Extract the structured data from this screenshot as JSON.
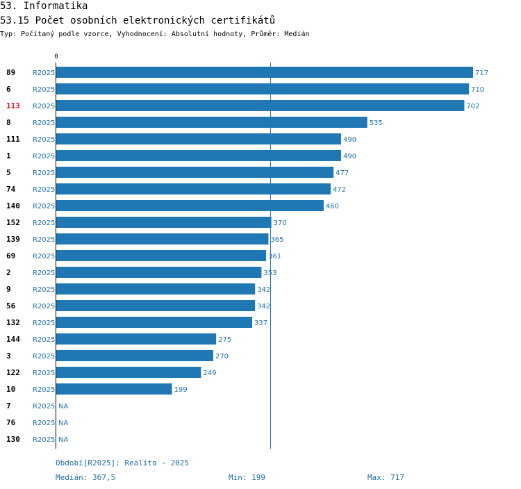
{
  "header": {
    "section_title": "53. Informatika",
    "chart_title": "53.15 Počet osobních elektronických certifikátů",
    "subtitle": "Typ: Počítaný podle vzorce, Vyhodnocení: Absolutní hodnoty, Průměr: Medián"
  },
  "colors": {
    "bar": "#1f77b4",
    "value_text": "#1f6fa8",
    "highlight_label": "#e8151b",
    "label": "#000000"
  },
  "chart_data": {
    "type": "bar",
    "orientation": "horizontal",
    "axis_zero_label": "0",
    "xlim": [
      0,
      717
    ],
    "median_line": 367.5,
    "series_name": "R2025",
    "highlight_category": "113",
    "categories": [
      "89",
      "6",
      "113",
      "8",
      "111",
      "1",
      "5",
      "74",
      "140",
      "152",
      "139",
      "69",
      "2",
      "9",
      "56",
      "132",
      "144",
      "3",
      "122",
      "10",
      "7",
      "76",
      "130"
    ],
    "values": [
      717,
      710,
      702,
      535,
      490,
      490,
      477,
      472,
      460,
      370,
      365,
      361,
      353,
      342,
      342,
      337,
      275,
      270,
      249,
      199,
      null,
      null,
      null
    ],
    "value_labels": [
      "717",
      "710",
      "702",
      "535",
      "490",
      "490",
      "477",
      "472",
      "460",
      "370",
      "365",
      "361",
      "353",
      "342",
      "342",
      "337",
      "275",
      "270",
      "249",
      "199",
      "NA",
      "NA",
      "NA"
    ]
  },
  "footer": {
    "period": "Období[R2025]: Realita - 2025",
    "median": "Medián: 367,5",
    "min": "Min: 199",
    "max": "Max: 717"
  }
}
